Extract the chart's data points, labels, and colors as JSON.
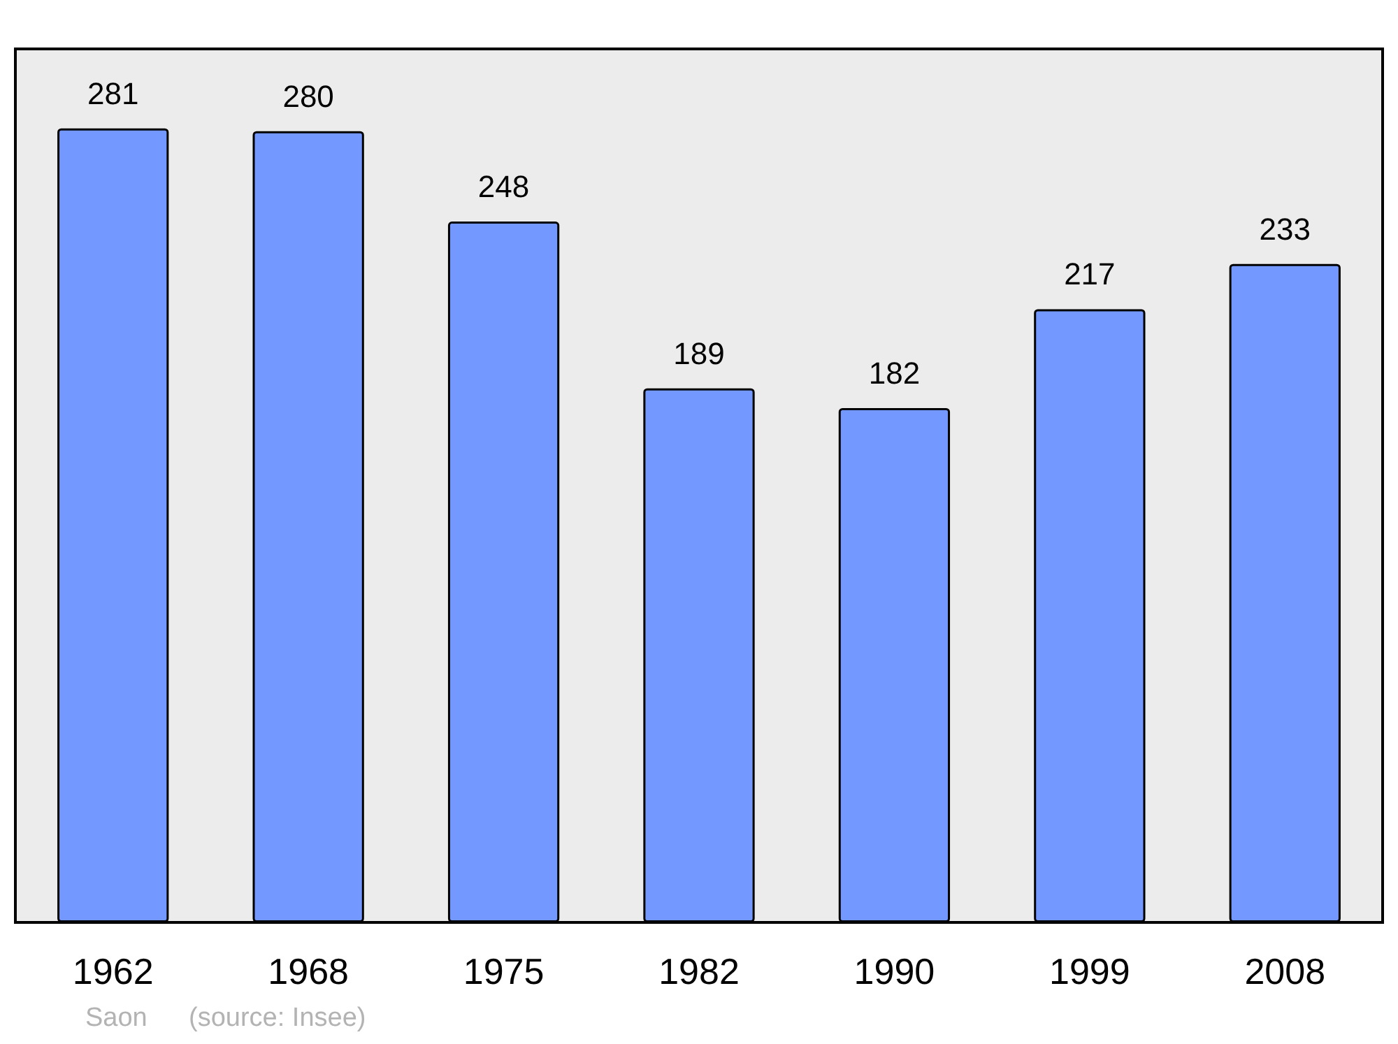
{
  "chart_data": {
    "type": "bar",
    "categories": [
      "1962",
      "1968",
      "1975",
      "1982",
      "1990",
      "1999",
      "2008"
    ],
    "values": [
      281,
      280,
      248,
      189,
      182,
      217,
      233
    ],
    "color": "#7398ff",
    "data_labels": true,
    "annotations": [
      "Saon",
      "(source: Insee)"
    ]
  }
}
